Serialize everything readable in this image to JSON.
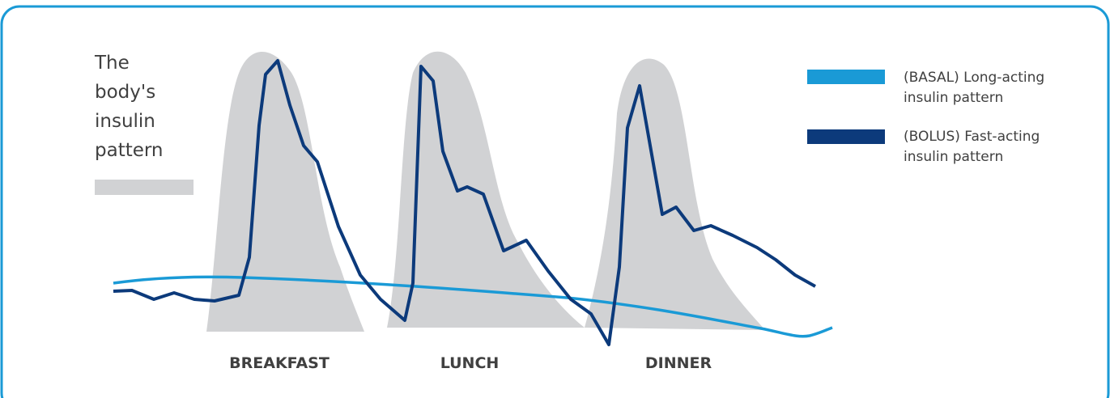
{
  "title_lines": [
    "The",
    "body's",
    "insulin",
    "pattern"
  ],
  "legend": [
    {
      "lines": [
        "(BASAL) Long-acting",
        "insulin pattern"
      ]
    },
    {
      "lines": [
        "(BOLUS) Fast-acting",
        "insulin pattern"
      ]
    }
  ],
  "meals": [
    "BREAKFAST",
    "LUNCH",
    "DINNER"
  ]
}
